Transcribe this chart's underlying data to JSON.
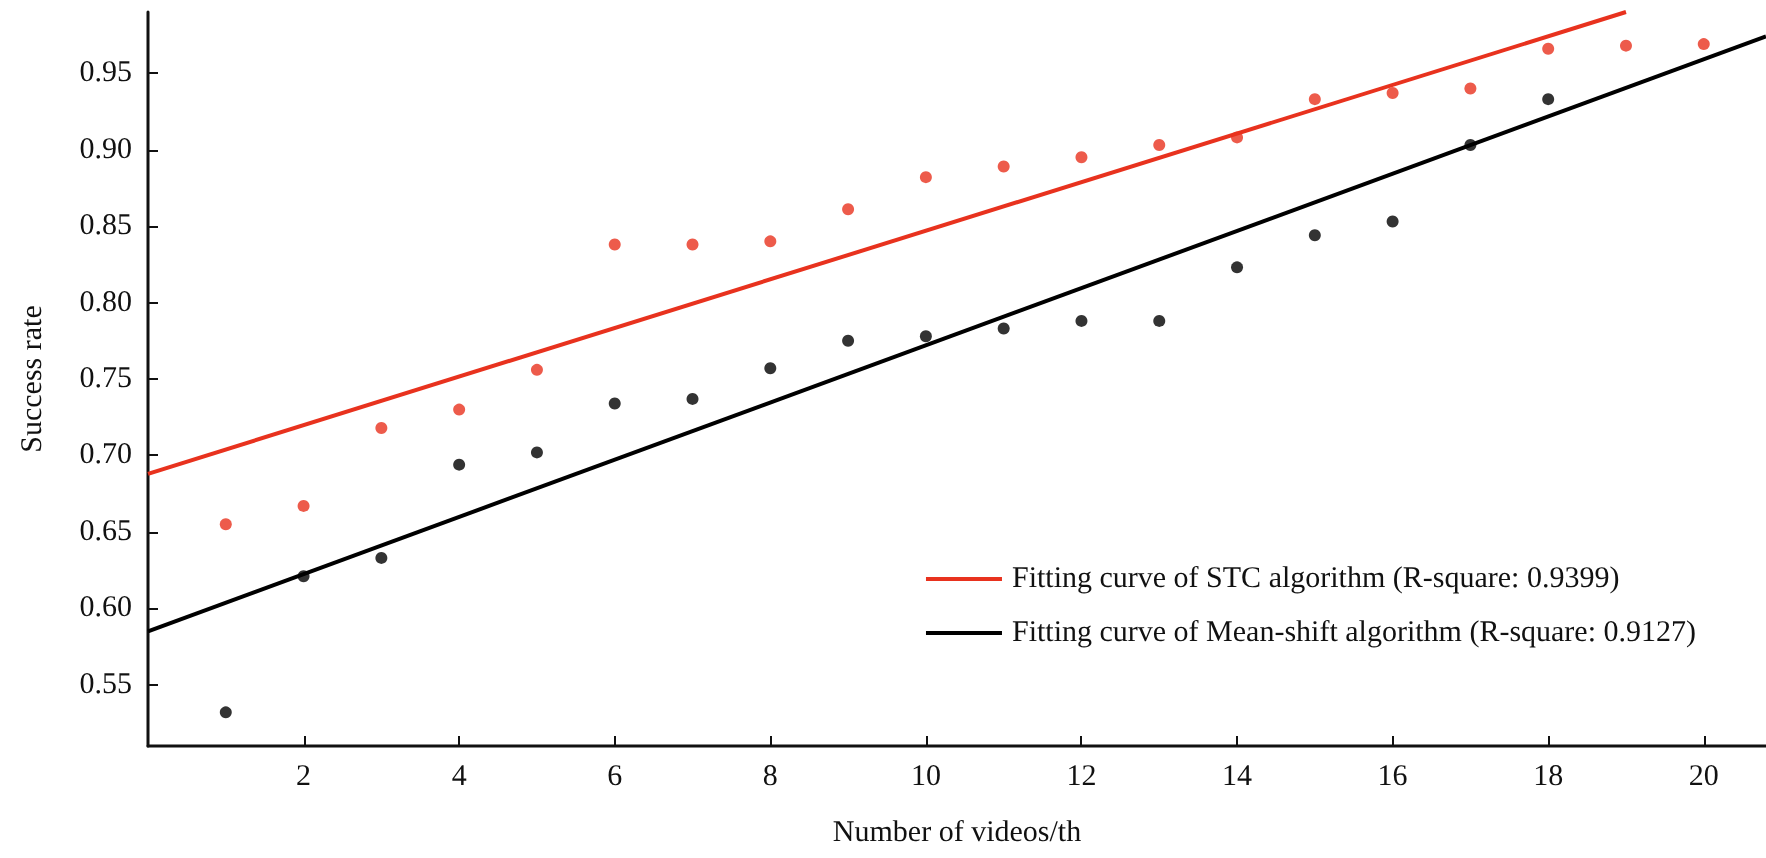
{
  "chart_data": {
    "type": "scatter",
    "xlabel": "Number of videos/th",
    "ylabel": "Success rate",
    "x": [
      1,
      2,
      3,
      4,
      5,
      6,
      7,
      8,
      9,
      10,
      11,
      12,
      13,
      14,
      15,
      16,
      17,
      18,
      19,
      20
    ],
    "series": [
      {
        "type": "scatter",
        "color": "#e8321e",
        "marker": "circle",
        "values": [
          0.655,
          0.667,
          0.718,
          0.73,
          0.756,
          0.838,
          0.838,
          0.84,
          0.861,
          0.882,
          0.889,
          0.895,
          0.903,
          0.908,
          0.933,
          0.937,
          0.94,
          0.966,
          0.968,
          0.969
        ]
      },
      {
        "type": "scatter",
        "color": "#000000",
        "marker": "circle",
        "x": [
          1,
          2,
          3,
          4,
          5,
          6,
          7,
          8,
          9,
          10,
          11,
          12,
          13,
          14,
          15,
          16,
          17,
          18
        ],
        "values": [
          0.532,
          0.621,
          0.633,
          0.694,
          0.702,
          0.734,
          0.737,
          0.757,
          0.775,
          0.778,
          0.783,
          0.788,
          0.788,
          0.823,
          0.844,
          0.853,
          0.903,
          0.933
        ]
      },
      {
        "type": "line",
        "name": "Fitting curve of STC algorithm (R-square: 0.9399)",
        "color": "#e8321e",
        "marker": "none",
        "line_style": "solid",
        "x": [
          0,
          19
        ],
        "values": [
          0.688,
          0.99
        ]
      },
      {
        "type": "line",
        "name": "Fitting curve of Mean-shift algorithm (R-square: 0.9127)",
        "color": "#000000",
        "marker": "none",
        "line_style": "solid",
        "x": [
          0,
          20.8
        ],
        "values": [
          0.585,
          0.974
        ]
      }
    ],
    "xlim": [
      0,
      20.8
    ],
    "xticks": [
      2,
      4,
      6,
      8,
      10,
      12,
      14,
      16,
      18,
      20
    ],
    "ylim": [
      0.51,
      0.99
    ],
    "yticks": [
      0.55,
      {
        "value": 0.6,
        "label": "0.60"
      },
      0.65,
      {
        "value": 0.7,
        "label": "0.70"
      },
      0.75,
      {
        "value": 0.8,
        "label": "0.80"
      },
      0.85,
      {
        "value": 0.9,
        "label": "0.90"
      },
      0.95
    ],
    "grid": false,
    "legend": "bottom right"
  }
}
